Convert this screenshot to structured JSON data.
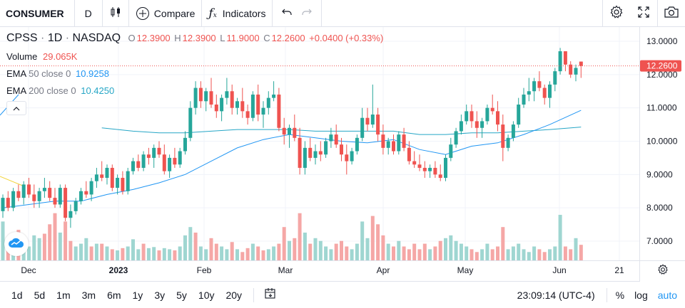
{
  "toolbar": {
    "symbol": "CONSUMER",
    "interval": "D",
    "compare_label": "Compare",
    "indicators_label": "Indicators"
  },
  "legend": {
    "symbol": "CPSS",
    "interval": "1D",
    "exchange": "NASDAQ",
    "o_label": "O",
    "o_value": "12.3900",
    "h_label": "H",
    "h_value": "12.3900",
    "l_label": "L",
    "l_value": "11.9000",
    "c_label": "C",
    "c_value": "12.2600",
    "change": "+0.0400 (+0.33%)",
    "volume_label": "Volume",
    "volume_value": "29.065K",
    "ema50_label": "EMA",
    "ema50_params": "50 close 0",
    "ema50_value": "10.9258",
    "ema200_label": "EMA",
    "ema200_params": "200 close 0",
    "ema200_value": "10.4250"
  },
  "price_axis": {
    "ticks": [
      "13.0000",
      "12.0000",
      "11.0000",
      "10.0000",
      "9.0000",
      "8.0000",
      "7.0000"
    ],
    "last_price_label": "12.2600"
  },
  "time_axis": {
    "labels": [
      "Dec",
      "2023",
      "Feb",
      "Mar",
      "Apr",
      "May",
      "Jun",
      "21"
    ]
  },
  "bottom": {
    "ranges": [
      "1d",
      "5d",
      "1m",
      "3m",
      "6m",
      "1y",
      "3y",
      "5y",
      "10y",
      "20y"
    ],
    "clock": "23:09:14 (UTC-4)",
    "percent_label": "%",
    "log_label": "log",
    "auto_label": "auto"
  },
  "colors": {
    "up": "#26a69a",
    "down": "#ef5350",
    "ema50": "#2196f3",
    "ema200": "#26a6c6",
    "accent": "#2196f3"
  },
  "chart_data": {
    "type": "candlestick",
    "x_labels": [
      "Dec",
      "2023",
      "Feb",
      "Mar",
      "Apr",
      "May",
      "Jun"
    ],
    "ylim": [
      6.6,
      13.4
    ],
    "candles": [
      [
        7.9,
        8.4,
        7.7,
        8.3
      ],
      [
        8.3,
        8.5,
        7.9,
        8.0
      ],
      [
        8.0,
        8.6,
        7.9,
        8.5
      ],
      [
        8.5,
        8.7,
        8.2,
        8.3
      ],
      [
        8.3,
        8.8,
        8.1,
        8.7
      ],
      [
        8.7,
        8.9,
        8.3,
        8.4
      ],
      [
        8.4,
        8.7,
        8.0,
        8.2
      ],
      [
        8.2,
        8.6,
        8.0,
        8.5
      ],
      [
        8.5,
        8.9,
        8.3,
        8.6
      ],
      [
        8.6,
        8.8,
        8.2,
        8.3
      ],
      [
        8.3,
        8.6,
        8.0,
        8.1
      ],
      [
        8.1,
        8.7,
        8.0,
        8.6
      ],
      [
        8.6,
        8.7,
        7.6,
        7.7
      ],
      [
        7.7,
        8.1,
        7.4,
        7.9
      ],
      [
        7.9,
        8.3,
        7.8,
        8.2
      ],
      [
        8.2,
        8.6,
        8.1,
        8.5
      ],
      [
        8.5,
        8.8,
        8.3,
        8.4
      ],
      [
        8.4,
        8.9,
        8.2,
        8.8
      ],
      [
        8.8,
        9.2,
        8.6,
        9.0
      ],
      [
        9.0,
        9.4,
        8.8,
        8.9
      ],
      [
        8.9,
        9.3,
        8.7,
        9.2
      ],
      [
        9.2,
        9.3,
        8.5,
        8.6
      ],
      [
        8.6,
        9.0,
        8.4,
        8.9
      ],
      [
        8.9,
        9.1,
        8.4,
        8.5
      ],
      [
        8.5,
        9.2,
        8.4,
        9.1
      ],
      [
        9.1,
        9.5,
        9.0,
        9.4
      ],
      [
        9.4,
        9.6,
        9.1,
        9.2
      ],
      [
        9.2,
        9.7,
        9.1,
        9.6
      ],
      [
        9.6,
        9.8,
        9.3,
        9.5
      ],
      [
        9.5,
        9.9,
        9.2,
        9.8
      ],
      [
        9.8,
        10.0,
        9.5,
        9.6
      ],
      [
        9.6,
        9.9,
        9.0,
        9.1
      ],
      [
        9.1,
        9.6,
        8.9,
        9.5
      ],
      [
        9.5,
        9.8,
        9.2,
        9.3
      ],
      [
        9.3,
        9.8,
        9.2,
        9.7
      ],
      [
        9.7,
        10.3,
        9.6,
        10.1
      ],
      [
        10.1,
        11.2,
        10.0,
        11.0
      ],
      [
        11.0,
        11.8,
        10.8,
        11.6
      ],
      [
        11.6,
        11.8,
        11.0,
        11.2
      ],
      [
        11.2,
        11.6,
        10.9,
        11.5
      ],
      [
        11.5,
        11.9,
        11.0,
        11.1
      ],
      [
        11.1,
        11.4,
        10.7,
        10.9
      ],
      [
        10.9,
        11.4,
        10.6,
        11.3
      ],
      [
        11.3,
        11.9,
        11.1,
        11.5
      ],
      [
        11.5,
        11.7,
        10.8,
        11.0
      ],
      [
        11.0,
        11.3,
        10.8,
        11.2
      ],
      [
        11.2,
        11.6,
        10.7,
        10.9
      ],
      [
        10.9,
        11.1,
        10.5,
        10.7
      ],
      [
        10.7,
        11.5,
        10.6,
        11.4
      ],
      [
        11.4,
        11.7,
        10.6,
        10.8
      ],
      [
        10.8,
        11.2,
        10.4,
        11.0
      ],
      [
        11.0,
        11.5,
        10.8,
        11.3
      ],
      [
        11.3,
        11.8,
        11.2,
        11.4
      ],
      [
        11.4,
        11.6,
        10.3,
        10.4
      ],
      [
        10.4,
        10.7,
        9.9,
        10.2
      ],
      [
        10.2,
        10.5,
        9.8,
        10.4
      ],
      [
        10.4,
        10.8,
        10.0,
        10.1
      ],
      [
        10.1,
        10.4,
        9.0,
        9.2
      ],
      [
        9.2,
        10.0,
        9.0,
        9.8
      ],
      [
        9.8,
        10.1,
        9.4,
        9.5
      ],
      [
        9.5,
        9.9,
        9.3,
        9.7
      ],
      [
        9.7,
        10.0,
        9.4,
        9.6
      ],
      [
        9.6,
        10.1,
        9.5,
        10.0
      ],
      [
        10.0,
        10.4,
        9.8,
        10.2
      ],
      [
        10.2,
        10.5,
        9.8,
        9.9
      ],
      [
        9.9,
        10.1,
        9.4,
        9.6
      ],
      [
        9.6,
        9.9,
        9.0,
        9.4
      ],
      [
        9.4,
        9.8,
        9.3,
        9.7
      ],
      [
        9.7,
        10.2,
        9.6,
        10.1
      ],
      [
        10.1,
        11.0,
        10.0,
        10.7
      ],
      [
        10.7,
        11.0,
        10.3,
        10.5
      ],
      [
        10.5,
        11.7,
        10.4,
        10.8
      ],
      [
        10.8,
        11.0,
        10.0,
        10.2
      ],
      [
        10.2,
        10.5,
        9.6,
        9.8
      ],
      [
        9.8,
        10.1,
        9.6,
        10.0
      ],
      [
        10.0,
        10.2,
        9.6,
        9.7
      ],
      [
        9.7,
        10.3,
        9.6,
        10.2
      ],
      [
        10.2,
        10.4,
        9.7,
        9.8
      ],
      [
        9.8,
        10.0,
        9.3,
        9.4
      ],
      [
        9.4,
        9.7,
        9.2,
        9.3
      ],
      [
        9.3,
        9.6,
        9.1,
        9.2
      ],
      [
        9.2,
        9.4,
        8.9,
        9.1
      ],
      [
        9.1,
        9.3,
        8.9,
        9.2
      ],
      [
        9.2,
        9.4,
        8.9,
        9.0
      ],
      [
        9.0,
        9.3,
        8.8,
        8.9
      ],
      [
        8.9,
        9.6,
        8.8,
        9.5
      ],
      [
        9.5,
        10.1,
        9.4,
        9.9
      ],
      [
        9.9,
        10.4,
        9.8,
        10.3
      ],
      [
        10.3,
        10.8,
        10.2,
        10.6
      ],
      [
        10.6,
        11.1,
        10.5,
        10.9
      ],
      [
        10.9,
        11.1,
        10.4,
        10.6
      ],
      [
        10.6,
        10.9,
        10.1,
        10.4
      ],
      [
        10.4,
        10.7,
        10.1,
        10.6
      ],
      [
        10.6,
        11.1,
        10.5,
        11.0
      ],
      [
        11.0,
        11.4,
        10.8,
        10.9
      ],
      [
        10.9,
        11.2,
        10.3,
        10.5
      ],
      [
        10.5,
        10.8,
        9.4,
        9.8
      ],
      [
        9.8,
        10.2,
        9.7,
        10.1
      ],
      [
        10.1,
        10.6,
        10.0,
        10.5
      ],
      [
        10.5,
        11.3,
        10.4,
        11.1
      ],
      [
        11.1,
        11.6,
        11.0,
        11.4
      ],
      [
        11.4,
        11.9,
        11.2,
        11.5
      ],
      [
        11.5,
        11.9,
        11.2,
        11.8
      ],
      [
        11.8,
        12.1,
        11.5,
        11.6
      ],
      [
        11.6,
        11.7,
        11.1,
        11.3
      ],
      [
        11.3,
        11.8,
        11.0,
        11.7
      ],
      [
        11.7,
        12.2,
        11.5,
        12.1
      ],
      [
        12.1,
        12.8,
        12.0,
        12.7
      ],
      [
        12.7,
        12.7,
        12.1,
        12.3
      ],
      [
        12.3,
        12.4,
        11.9,
        12.0
      ],
      [
        12.0,
        12.3,
        11.8,
        12.2
      ],
      [
        12.39,
        12.39,
        11.9,
        12.26
      ]
    ],
    "volume_bars": [
      [
        70,
        1
      ],
      [
        40,
        0
      ],
      [
        35,
        1
      ],
      [
        55,
        0
      ],
      [
        30,
        1
      ],
      [
        25,
        1
      ],
      [
        45,
        1
      ],
      [
        40,
        1
      ],
      [
        48,
        0
      ],
      [
        65,
        0
      ],
      [
        85,
        0
      ],
      [
        50,
        1
      ],
      [
        70,
        0
      ],
      [
        35,
        0
      ],
      [
        25,
        1
      ],
      [
        30,
        1
      ],
      [
        40,
        1
      ],
      [
        25,
        0
      ],
      [
        30,
        1
      ],
      [
        30,
        0
      ],
      [
        25,
        1
      ],
      [
        20,
        0
      ],
      [
        18,
        1
      ],
      [
        22,
        0
      ],
      [
        25,
        1
      ],
      [
        38,
        1
      ],
      [
        20,
        1
      ],
      [
        30,
        0
      ],
      [
        22,
        1
      ],
      [
        24,
        1
      ],
      [
        18,
        0
      ],
      [
        22,
        1
      ],
      [
        20,
        1
      ],
      [
        18,
        0
      ],
      [
        25,
        1
      ],
      [
        45,
        1
      ],
      [
        60,
        1
      ],
      [
        50,
        0
      ],
      [
        25,
        1
      ],
      [
        20,
        1
      ],
      [
        40,
        0
      ],
      [
        30,
        0
      ],
      [
        25,
        1
      ],
      [
        20,
        1
      ],
      [
        33,
        0
      ],
      [
        20,
        1
      ],
      [
        15,
        0
      ],
      [
        22,
        0
      ],
      [
        30,
        1
      ],
      [
        25,
        0
      ],
      [
        18,
        0
      ],
      [
        20,
        1
      ],
      [
        25,
        1
      ],
      [
        30,
        0
      ],
      [
        60,
        0
      ],
      [
        35,
        1
      ],
      [
        40,
        0
      ],
      [
        85,
        0
      ],
      [
        50,
        1
      ],
      [
        30,
        0
      ],
      [
        40,
        1
      ],
      [
        35,
        1
      ],
      [
        25,
        1
      ],
      [
        20,
        1
      ],
      [
        30,
        0
      ],
      [
        35,
        0
      ],
      [
        25,
        0
      ],
      [
        20,
        1
      ],
      [
        30,
        1
      ],
      [
        70,
        1
      ],
      [
        40,
        1
      ],
      [
        80,
        0
      ],
      [
        65,
        0
      ],
      [
        45,
        0
      ],
      [
        30,
        1
      ],
      [
        25,
        0
      ],
      [
        35,
        1
      ],
      [
        25,
        0
      ],
      [
        20,
        0
      ],
      [
        30,
        0
      ],
      [
        20,
        0
      ],
      [
        30,
        0
      ],
      [
        20,
        1
      ],
      [
        25,
        0
      ],
      [
        35,
        0
      ],
      [
        40,
        1
      ],
      [
        45,
        1
      ],
      [
        35,
        1
      ],
      [
        30,
        1
      ],
      [
        25,
        1
      ],
      [
        20,
        0
      ],
      [
        15,
        0
      ],
      [
        20,
        1
      ],
      [
        30,
        1
      ],
      [
        20,
        0
      ],
      [
        25,
        0
      ],
      [
        60,
        0
      ],
      [
        20,
        1
      ],
      [
        25,
        1
      ],
      [
        30,
        1
      ],
      [
        20,
        1
      ],
      [
        15,
        1
      ],
      [
        25,
        1
      ],
      [
        20,
        0
      ],
      [
        15,
        0
      ],
      [
        20,
        1
      ],
      [
        25,
        1
      ],
      [
        82,
        1
      ],
      [
        25,
        0
      ],
      [
        20,
        0
      ],
      [
        40,
        1
      ],
      [
        28,
        0
      ]
    ],
    "ema50": [
      [
        0,
        8.0
      ],
      [
        5,
        8.1
      ],
      [
        10,
        8.2
      ],
      [
        15,
        8.2
      ],
      [
        20,
        8.4
      ],
      [
        25,
        8.55
      ],
      [
        30,
        8.75
      ],
      [
        35,
        9.0
      ],
      [
        40,
        9.4
      ],
      [
        45,
        9.8
      ],
      [
        50,
        10.05
      ],
      [
        55,
        10.2
      ],
      [
        60,
        10.1
      ],
      [
        65,
        10.0
      ],
      [
        70,
        9.95
      ],
      [
        75,
        10.05
      ],
      [
        80,
        9.75
      ],
      [
        85,
        9.6
      ],
      [
        90,
        9.85
      ],
      [
        95,
        9.95
      ],
      [
        100,
        10.2
      ],
      [
        105,
        10.5
      ],
      [
        111,
        10.9258
      ]
    ],
    "ema200": [
      [
        19,
        10.4
      ],
      [
        25,
        10.3
      ],
      [
        30,
        10.25
      ],
      [
        35,
        10.25
      ],
      [
        40,
        10.3
      ],
      [
        45,
        10.35
      ],
      [
        50,
        10.35
      ],
      [
        55,
        10.35
      ],
      [
        60,
        10.3
      ],
      [
        65,
        10.3
      ],
      [
        70,
        10.3
      ],
      [
        75,
        10.3
      ],
      [
        80,
        10.2
      ],
      [
        85,
        10.2
      ],
      [
        90,
        10.25
      ],
      [
        95,
        10.25
      ],
      [
        100,
        10.3
      ],
      [
        105,
        10.35
      ],
      [
        111,
        10.425
      ]
    ]
  }
}
